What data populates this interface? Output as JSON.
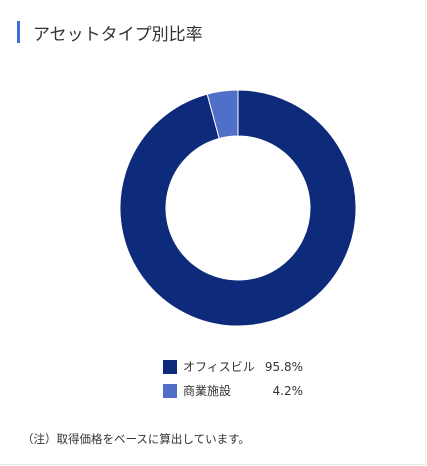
{
  "header": {
    "title": "アセットタイプ別比率"
  },
  "chart_data": {
    "type": "pie",
    "title": "アセットタイプ別比率",
    "categories": [
      "オフィスビル",
      "商業施設"
    ],
    "values": [
      95.8,
      4.2
    ],
    "value_labels": [
      "95.8%",
      "4.2%"
    ],
    "colors": [
      "#0e2a7a",
      "#4f6fc8"
    ],
    "donut": true,
    "legend_position": "bottom"
  },
  "footer": {
    "note": "（注）取得価格をベースに算出しています。"
  }
}
